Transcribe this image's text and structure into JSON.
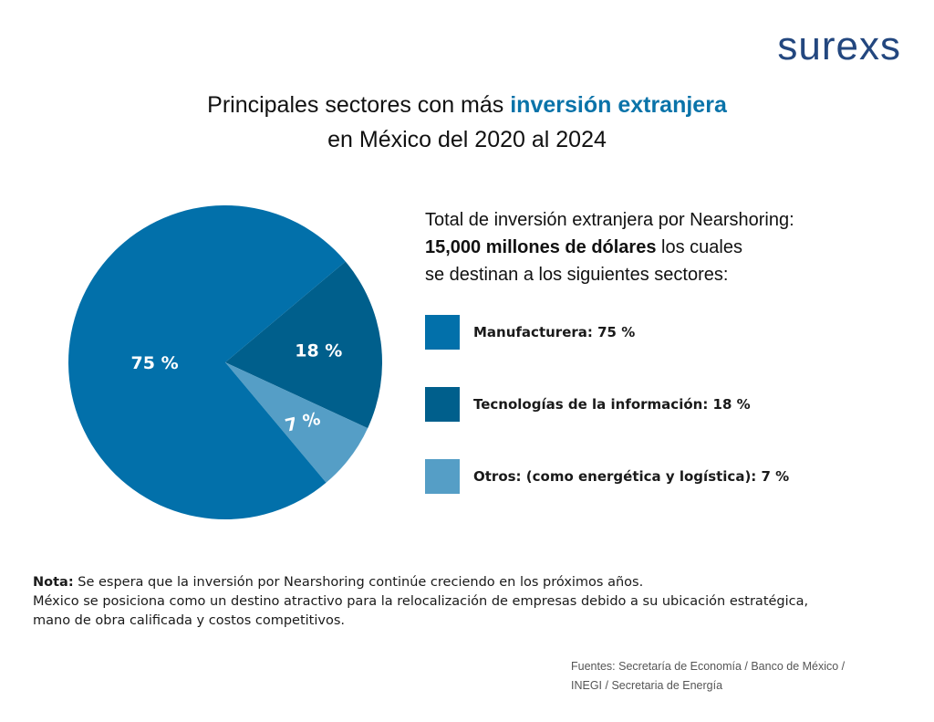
{
  "logo": "surexs",
  "title": {
    "line1_pre": "Principales sectores con más ",
    "line1_highlight": "inversión extranjera",
    "line2": "en México del 2020 al 2024"
  },
  "intro": {
    "line1": "Total de inversión extranjera por Nearshoring:",
    "bold": "15,000 millones de dólares",
    "line2_rest": " los cuales",
    "line3": "se destinan a los siguientes sectores:"
  },
  "chart_data": {
    "type": "pie",
    "title": "Principales sectores con más inversión extranjera en México del 2020 al 2024",
    "categories": [
      "Manufacturera",
      "Tecnologías de la información",
      "Otros (como energética y logística)"
    ],
    "values": [
      75,
      18,
      7
    ],
    "data_labels": [
      "75 %",
      "18 %",
      "7 %"
    ],
    "colors": [
      "#0270aa",
      "#005f8c",
      "#559ec6"
    ],
    "legend": [
      "Manufacturera: 75 %",
      "Tecnologías de la información: 18 %",
      "Otros: (como energética y logística): 7 %"
    ],
    "legend_placement": "right"
  },
  "note": {
    "label": "Nota:",
    "text1": " Se espera que la inversión por Nearshoring continúe creciendo en los próximos años.",
    "text2": "México se posiciona como un destino atractivo para la relocalización de empresas debido a su ubicación estratégica,",
    "text3": "mano de obra calificada y costos competitivos."
  },
  "sources": {
    "line1": "Fuentes: Secretaría de Economía / Banco de México /",
    "line2": "INEGI / Secretaria de Energía"
  }
}
